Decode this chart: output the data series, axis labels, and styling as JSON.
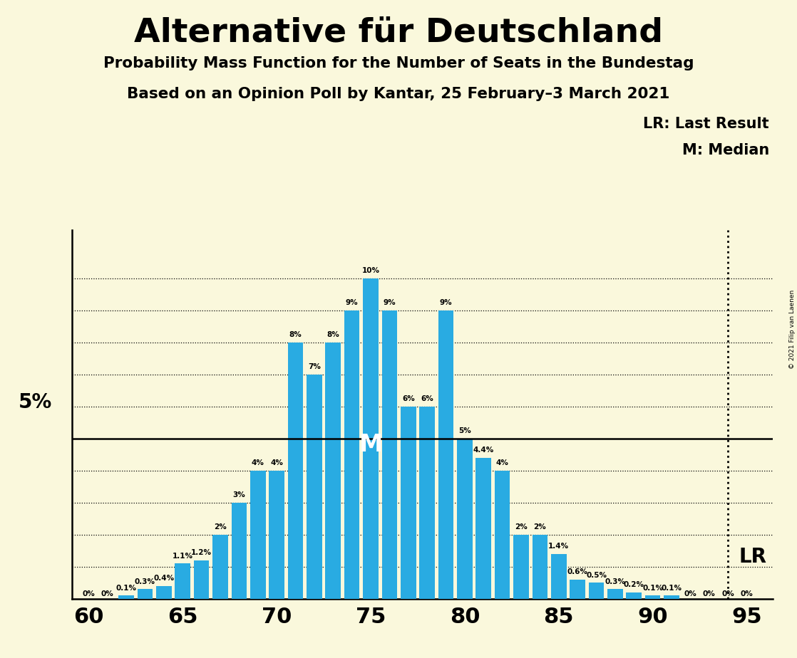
{
  "title": "Alternative für Deutschland",
  "subtitle1": "Probability Mass Function for the Number of Seats in the Bundestag",
  "subtitle2": "Based on an Opinion Poll by Kantar, 25 February–3 March 2021",
  "copyright": "© 2021 Filip van Laenen",
  "legend_lr": "LR: Last Result",
  "legend_m": "M: Median",
  "bar_color": "#29ABE2",
  "background_color": "#FAF8DC",
  "seats": [
    60,
    61,
    62,
    63,
    64,
    65,
    66,
    67,
    68,
    69,
    70,
    71,
    72,
    73,
    74,
    75,
    76,
    77,
    78,
    79,
    80,
    81,
    82,
    83,
    84,
    85,
    86,
    87,
    88,
    89,
    90,
    91,
    92,
    93,
    94,
    95
  ],
  "probabilities": [
    0.0,
    0.0,
    0.1,
    0.3,
    0.4,
    1.1,
    1.2,
    2.0,
    3.0,
    4.0,
    4.0,
    8.0,
    7.0,
    8.0,
    9.0,
    10.0,
    9.0,
    6.0,
    6.0,
    9.0,
    5.0,
    4.4,
    4.0,
    2.0,
    2.0,
    1.4,
    0.6,
    0.5,
    0.3,
    0.2,
    0.1,
    0.1,
    0.0,
    0.0,
    0.0,
    0.0
  ],
  "label_texts": [
    "0%",
    "0%",
    "0.1%",
    "0.3%",
    "0.4%",
    "1.1%",
    "1.2%",
    "2%",
    "3%",
    "4%",
    "4%",
    "8%",
    "7%",
    "8%",
    "9%",
    "10%",
    "9%",
    "6%",
    "6%",
    "9%",
    "5%",
    "4.4%",
    "4%",
    "2%",
    "2%",
    "1.4%",
    "0.6%",
    "0.5%",
    "0.3%",
    "0.2%",
    "0.1%",
    "0.1%",
    "0%",
    "0%",
    "0%",
    "0%"
  ],
  "median_seat": 75,
  "lr_seat": 94,
  "five_pct_line": 5.0,
  "ylim": [
    0,
    11.5
  ],
  "dotted_yticks": [
    1,
    2,
    3,
    4,
    6,
    7,
    8,
    9,
    10
  ],
  "xticks": [
    60,
    65,
    70,
    75,
    80,
    85,
    90,
    95
  ],
  "xlim_left": 59.1,
  "xlim_right": 96.4
}
